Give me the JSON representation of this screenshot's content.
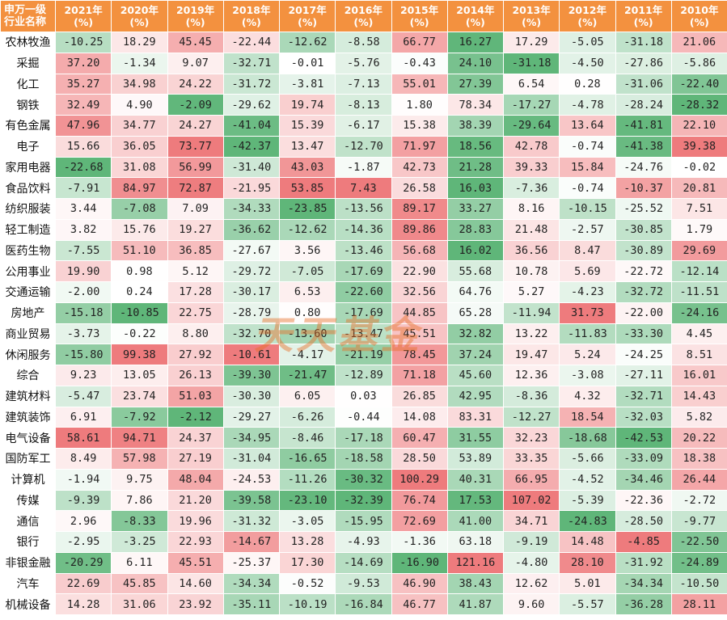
{
  "header": {
    "corner_line1": "申万一级",
    "corner_line2": "行业名称",
    "unit": "(%)",
    "years": [
      "2021年",
      "2020年",
      "2019年",
      "2018年",
      "2017年",
      "2016年",
      "2015年",
      "2014年",
      "2013年",
      "2012年",
      "2011年",
      "2010年"
    ]
  },
  "rows": [
    {
      "name": "农林牧渔",
      "values": [
        -10.25,
        18.29,
        45.45,
        -22.44,
        -12.62,
        -8.58,
        66.77,
        16.27,
        17.29,
        -5.05,
        -31.18,
        21.06
      ]
    },
    {
      "name": "采掘",
      "values": [
        37.2,
        -1.34,
        9.07,
        -32.71,
        -0.01,
        -5.76,
        -0.43,
        24.1,
        -31.18,
        -4.5,
        -27.86,
        -5.86
      ]
    },
    {
      "name": "化工",
      "values": [
        35.27,
        34.98,
        24.22,
        -31.72,
        -3.81,
        -7.13,
        55.01,
        27.39,
        6.54,
        0.28,
        -31.06,
        -22.4
      ]
    },
    {
      "name": "钢铁",
      "values": [
        32.49,
        4.9,
        -2.09,
        -29.62,
        19.74,
        -8.13,
        1.8,
        78.34,
        -17.27,
        -4.78,
        -28.24,
        -28.32
      ]
    },
    {
      "name": "有色金属",
      "values": [
        47.96,
        34.77,
        24.27,
        -41.04,
        15.39,
        -6.17,
        15.38,
        38.39,
        -29.64,
        13.64,
        -41.81,
        22.1
      ]
    },
    {
      "name": "电子",
      "values": [
        15.66,
        36.05,
        73.77,
        -42.37,
        13.47,
        -12.7,
        71.97,
        18.56,
        42.78,
        -0.74,
        -41.38,
        39.38
      ]
    },
    {
      "name": "家用电器",
      "values": [
        -22.68,
        31.08,
        56.99,
        -31.4,
        43.03,
        -1.87,
        42.73,
        21.28,
        39.33,
        15.84,
        -24.76,
        -0.02
      ]
    },
    {
      "name": "食品饮料",
      "values": [
        -7.91,
        84.97,
        72.87,
        -21.95,
        53.85,
        7.43,
        26.58,
        16.03,
        -7.36,
        -0.74,
        -10.37,
        20.81
      ]
    },
    {
      "name": "纺织服装",
      "values": [
        3.44,
        -7.08,
        7.09,
        -34.33,
        -23.85,
        -13.56,
        89.17,
        33.27,
        8.16,
        -10.15,
        -25.52,
        7.51
      ]
    },
    {
      "name": "轻工制造",
      "values": [
        3.82,
        15.76,
        19.27,
        -36.62,
        -12.62,
        -14.36,
        89.86,
        28.83,
        21.48,
        -2.57,
        -30.85,
        1.79
      ]
    },
    {
      "name": "医药生物",
      "values": [
        -7.55,
        51.1,
        36.85,
        -27.67,
        3.56,
        -13.46,
        56.68,
        16.02,
        36.56,
        8.47,
        -30.89,
        29.69
      ]
    },
    {
      "name": "公用事业",
      "values": [
        19.9,
        0.98,
        5.12,
        -29.72,
        -7.05,
        -17.69,
        22.9,
        55.68,
        10.78,
        5.69,
        -22.72,
        -12.14
      ]
    },
    {
      "name": "交通运输",
      "values": [
        -2.0,
        0.24,
        17.28,
        -30.17,
        6.53,
        -22.6,
        32.56,
        64.76,
        5.27,
        -4.23,
        -32.72,
        -11.51
      ]
    },
    {
      "name": "房地产",
      "values": [
        -15.18,
        -10.85,
        22.75,
        -28.79,
        0.8,
        -17.69,
        44.85,
        65.28,
        -11.94,
        31.73,
        -22.0,
        -24.16
      ]
    },
    {
      "name": "商业贸易",
      "values": [
        -3.73,
        -0.22,
        8.8,
        -32.7,
        -13.6,
        -13.47,
        45.51,
        32.82,
        13.22,
        -11.83,
        -33.3,
        4.45
      ]
    },
    {
      "name": "休闲服务",
      "values": [
        -15.8,
        99.38,
        27.92,
        -10.61,
        -4.17,
        -21.19,
        78.45,
        37.24,
        19.47,
        5.24,
        -24.25,
        8.51
      ]
    },
    {
      "name": "综合",
      "values": [
        9.23,
        13.05,
        26.13,
        -39.3,
        -21.47,
        -12.89,
        71.18,
        45.6,
        12.36,
        -3.08,
        -27.11,
        16.01
      ]
    },
    {
      "name": "建筑材料",
      "values": [
        -5.47,
        23.74,
        51.03,
        -30.3,
        6.05,
        0.03,
        26.85,
        42.95,
        -8.36,
        4.32,
        -32.71,
        14.43
      ]
    },
    {
      "name": "建筑装饰",
      "values": [
        6.91,
        -7.92,
        -2.12,
        -29.27,
        -6.26,
        -0.44,
        14.08,
        83.31,
        -12.27,
        18.54,
        -32.03,
        5.82
      ]
    },
    {
      "name": "电气设备",
      "values": [
        58.61,
        94.71,
        24.37,
        -34.95,
        -8.46,
        -17.18,
        60.47,
        31.55,
        32.23,
        -18.68,
        -42.53,
        20.22
      ]
    },
    {
      "name": "国防军工",
      "values": [
        8.49,
        57.98,
        27.19,
        -31.04,
        -16.65,
        -18.58,
        28.5,
        53.89,
        33.35,
        -5.66,
        -33.09,
        18.38
      ]
    },
    {
      "name": "计算机",
      "values": [
        -1.94,
        9.75,
        48.04,
        -24.53,
        -11.26,
        -30.32,
        100.29,
        40.31,
        66.95,
        -4.52,
        -34.46,
        26.44
      ]
    },
    {
      "name": "传媒",
      "values": [
        -9.39,
        7.86,
        21.2,
        -39.58,
        -23.1,
        -32.39,
        76.74,
        17.53,
        107.02,
        -5.39,
        -22.36,
        -2.72
      ]
    },
    {
      "name": "通信",
      "values": [
        2.96,
        -8.33,
        19.96,
        -31.32,
        -3.05,
        -15.95,
        72.69,
        41.0,
        34.71,
        -24.83,
        -28.5,
        -9.77
      ]
    },
    {
      "name": "银行",
      "values": [
        -2.95,
        -3.25,
        22.93,
        -14.67,
        13.28,
        -4.93,
        -1.36,
        63.18,
        -9.19,
        14.48,
        -4.85,
        -22.5
      ]
    },
    {
      "name": "非银金融",
      "values": [
        -20.29,
        6.11,
        45.51,
        -25.37,
        17.3,
        -14.69,
        -16.9,
        121.16,
        -4.8,
        28.1,
        -31.92,
        -24.89
      ]
    },
    {
      "name": "汽车",
      "values": [
        22.69,
        45.85,
        14.6,
        -34.34,
        -0.52,
        -9.53,
        46.9,
        38.43,
        12.62,
        5.01,
        -34.34,
        -10.5
      ]
    },
    {
      "name": "机械设备",
      "values": [
        14.28,
        31.06,
        23.92,
        -35.11,
        -10.19,
        -16.84,
        46.77,
        41.87,
        9.6,
        -5.57,
        -36.28,
        28.11
      ]
    }
  ],
  "watermark": "天天基金",
  "colors": {
    "header_bg": "#f3913f",
    "positive_strong": "#ee7b7d",
    "negative_strong": "#5fb679",
    "neutral": "#ffffff"
  }
}
